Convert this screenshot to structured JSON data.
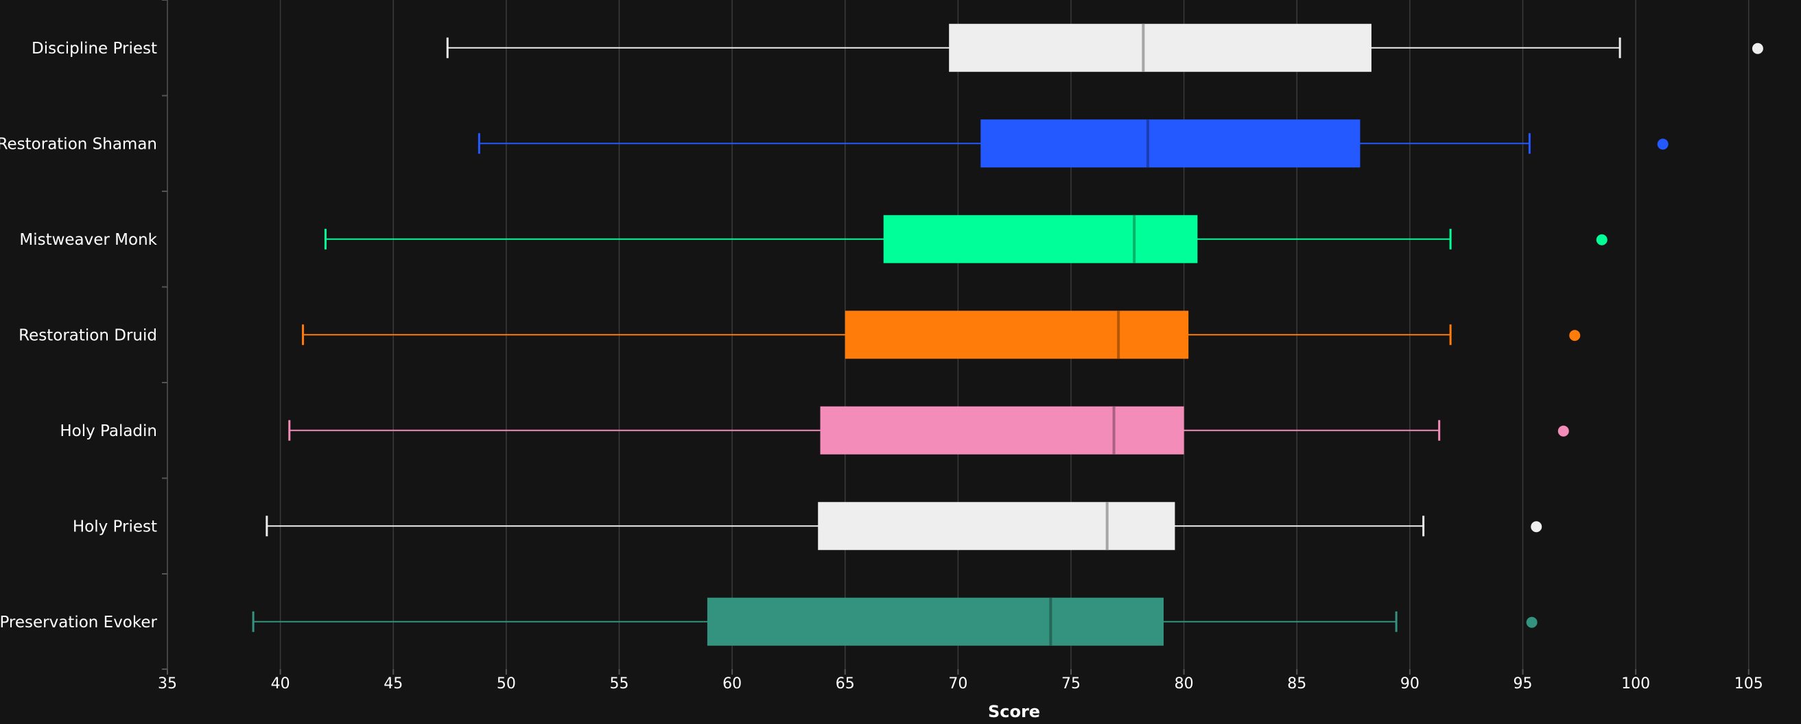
{
  "chart_data": {
    "type": "boxplot",
    "orientation": "horizontal",
    "xlabel": "Score",
    "xlim": [
      35,
      106
    ],
    "xticks": [
      35,
      40,
      45,
      50,
      55,
      60,
      65,
      70,
      75,
      80,
      85,
      90,
      95,
      100,
      105
    ],
    "grid": true,
    "background": "#141414",
    "series": [
      {
        "name": "Discipline Priest",
        "color": "#eeeeee",
        "median_color": "#a6a6a6",
        "min": 47.4,
        "q1": 69.6,
        "median": 78.2,
        "q3": 88.3,
        "max": 99.3,
        "outliers": [
          105.4
        ]
      },
      {
        "name": "Restoration Shaman",
        "color": "#2459ff",
        "median_color": "#1a3fb3",
        "min": 48.8,
        "q1": 71.0,
        "median": 78.4,
        "q3": 87.8,
        "max": 95.3,
        "outliers": [
          101.2
        ]
      },
      {
        "name": "Mistweaver Monk",
        "color": "#00ff98",
        "median_color": "#00b36a",
        "min": 42.0,
        "q1": 66.7,
        "median": 77.8,
        "q3": 80.6,
        "max": 91.8,
        "outliers": [
          98.5
        ]
      },
      {
        "name": "Restoration Druid",
        "color": "#ff7c0a",
        "median_color": "#b35707",
        "min": 41.0,
        "q1": 65.0,
        "median": 77.1,
        "q3": 80.2,
        "max": 91.8,
        "outliers": [
          97.3
        ]
      },
      {
        "name": "Holy Paladin",
        "color": "#f48cba",
        "median_color": "#ab6282",
        "min": 40.4,
        "q1": 63.9,
        "median": 76.9,
        "q3": 80.0,
        "max": 91.3,
        "outliers": [
          96.8
        ]
      },
      {
        "name": "Holy Priest",
        "color": "#eeeeee",
        "median_color": "#a6a6a6",
        "min": 39.4,
        "q1": 63.8,
        "median": 76.6,
        "q3": 79.6,
        "max": 90.6,
        "outliers": [
          95.6
        ]
      },
      {
        "name": "Preservation Evoker",
        "color": "#33937f",
        "median_color": "#246759",
        "min": 38.8,
        "q1": 58.9,
        "median": 74.1,
        "q3": 79.1,
        "max": 89.4,
        "outliers": [
          95.4
        ]
      }
    ]
  }
}
